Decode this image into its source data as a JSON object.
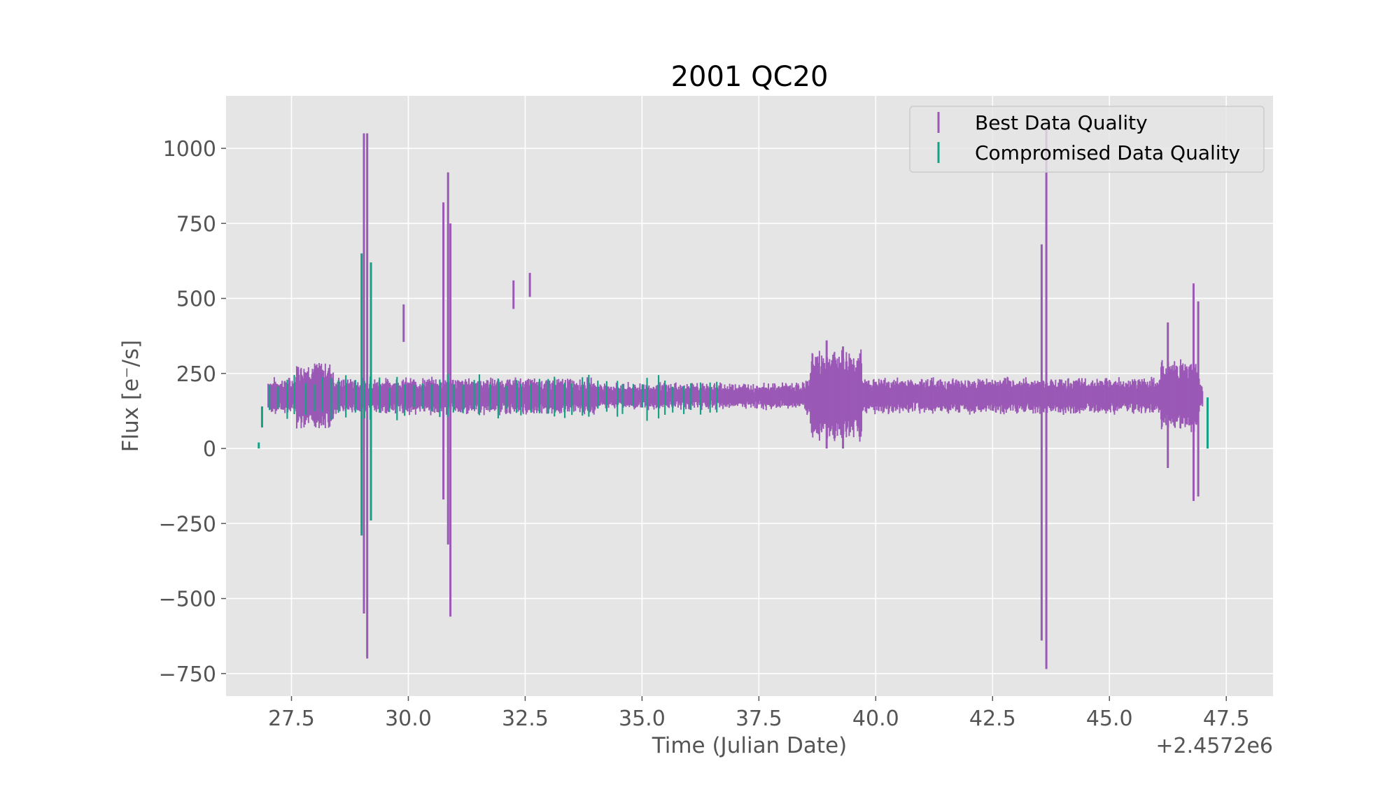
{
  "chart_data": {
    "type": "errorbar",
    "title": "2001 QC20",
    "xlabel": "Time (Julian Date)",
    "ylabel": "Flux [e⁻/s]",
    "x_offset_label": "+2.4572e6",
    "xlim": [
      26.1,
      48.5
    ],
    "ylim": [
      -825,
      1175
    ],
    "x_ticks": [
      27.5,
      30.0,
      32.5,
      35.0,
      37.5,
      40.0,
      42.5,
      45.0,
      47.5
    ],
    "x_tick_labels": [
      "27.5",
      "30.0",
      "32.5",
      "35.0",
      "37.5",
      "40.0",
      "42.5",
      "45.0",
      "47.5"
    ],
    "y_ticks": [
      -750,
      -500,
      -250,
      0,
      250,
      500,
      750,
      1000
    ],
    "y_tick_labels": [
      "−750",
      "−500",
      "−250",
      "0",
      "250",
      "500",
      "750",
      "1000"
    ],
    "grid": true,
    "legend_position": "top-right",
    "series": [
      {
        "name": "Best Data Quality",
        "color": "#9b59b6",
        "x_range": [
          27.0,
          47.0
        ],
        "baseline": 175,
        "points": [
          {
            "x": 29.05,
            "y_low": -550,
            "y_high": 1050
          },
          {
            "x": 29.12,
            "y_low": -700,
            "y_high": 1050
          },
          {
            "x": 30.75,
            "y_low": -170,
            "y_high": 820
          },
          {
            "x": 30.85,
            "y_low": -320,
            "y_high": 920
          },
          {
            "x": 30.9,
            "y_low": -560,
            "y_high": 750
          },
          {
            "x": 29.9,
            "y_low": 355,
            "y_high": 480
          },
          {
            "x": 32.25,
            "y_low": 465,
            "y_high": 560
          },
          {
            "x": 32.6,
            "y_low": 505,
            "y_high": 585
          },
          {
            "x": 38.95,
            "y_low": 0,
            "y_high": 360
          },
          {
            "x": 39.3,
            "y_low": 0,
            "y_high": 340
          },
          {
            "x": 43.55,
            "y_low": -640,
            "y_high": 680
          },
          {
            "x": 43.65,
            "y_low": -735,
            "y_high": 1065
          },
          {
            "x": 46.25,
            "y_low": -65,
            "y_high": 420
          },
          {
            "x": 46.8,
            "y_low": -175,
            "y_high": 550
          },
          {
            "x": 46.9,
            "y_low": -160,
            "y_high": 490
          }
        ]
      },
      {
        "name": "Compromised Data Quality",
        "color": "#16a085",
        "points": [
          {
            "x": 26.8,
            "y_low": 0,
            "y_high": 20
          },
          {
            "x": 26.87,
            "y_low": 70,
            "y_high": 140
          },
          {
            "x": 29.0,
            "y_low": -290,
            "y_high": 650
          },
          {
            "x": 29.2,
            "y_low": -240,
            "y_high": 620
          },
          {
            "x": 47.1,
            "y_low": 0,
            "y_high": 170
          }
        ]
      }
    ]
  }
}
